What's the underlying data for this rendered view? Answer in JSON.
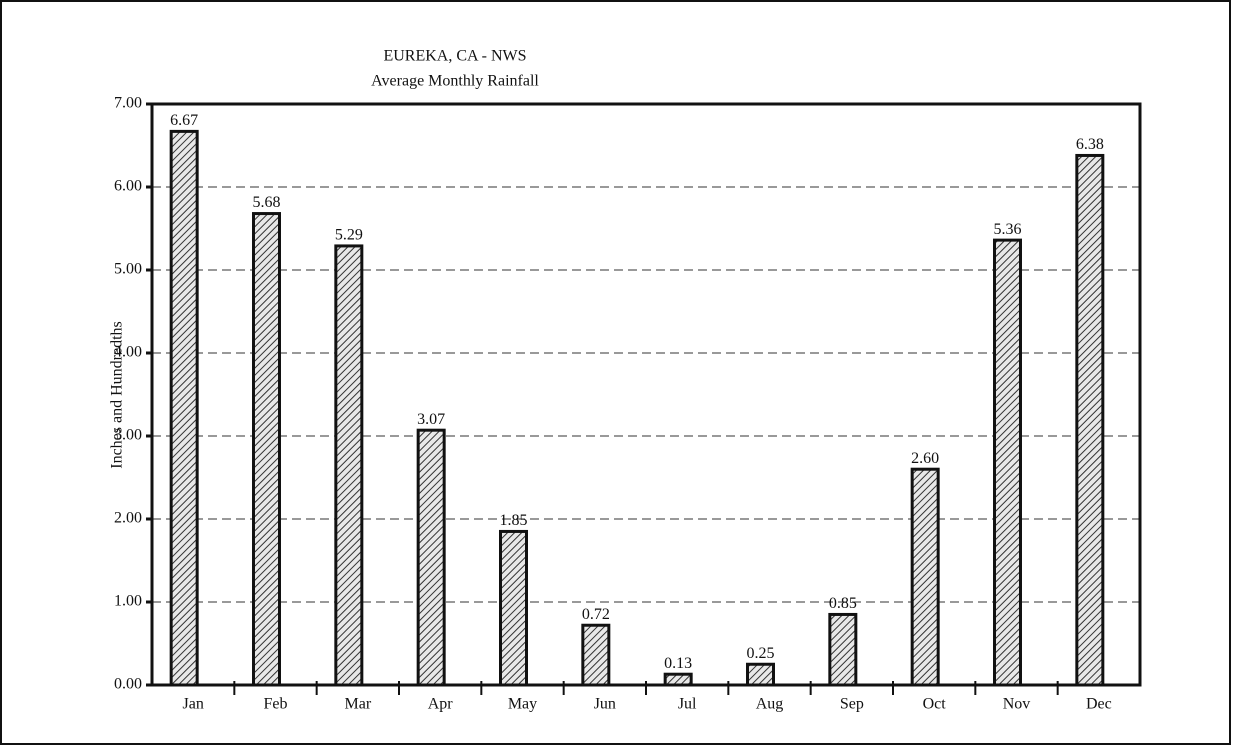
{
  "chart_data": {
    "type": "bar",
    "title": "EUREKA, CA - NWS",
    "subtitle": "Average Monthly Rainfall",
    "y_label": "Inches and Hundredths",
    "categories": [
      "Jan",
      "Feb",
      "Mar",
      "Apr",
      "May",
      "Jun",
      "Jul",
      "Aug",
      "Sep",
      "Oct",
      "Nov",
      "Dec"
    ],
    "values": [
      6.67,
      5.68,
      5.29,
      3.07,
      1.85,
      0.72,
      0.13,
      0.25,
      0.85,
      2.6,
      5.36,
      6.38
    ],
    "value_labels": [
      "6.67",
      "5.68",
      "5.29",
      "3.07",
      "1.85",
      "0.72",
      "0.13",
      "0.25",
      "0.85",
      "2.60",
      "5.36",
      "6.38"
    ],
    "color": "#555555",
    "ylim": [
      0,
      7
    ],
    "yticks": [
      {
        "value": 0,
        "label": "0.00"
      },
      {
        "value": 1,
        "label": "1.00"
      },
      {
        "value": 2,
        "label": "2.00"
      },
      {
        "value": 3,
        "label": "3.00"
      },
      {
        "value": 4,
        "label": "4.00"
      },
      {
        "value": 5,
        "label": "5.00"
      },
      {
        "value": 6,
        "label": "6.00"
      },
      {
        "value": 7,
        "label": "7.00"
      }
    ],
    "grid": true
  }
}
